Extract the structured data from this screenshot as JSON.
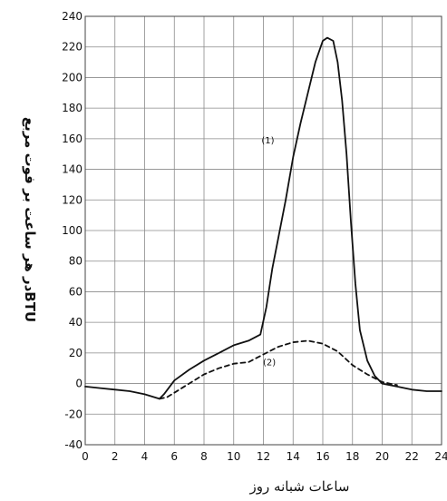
{
  "chart_data": {
    "type": "line",
    "title": "",
    "xlabel": "ساعات شبانه روز",
    "ylabel": "BTUدر هر ساعت بر فوت مربع",
    "xlim": [
      0,
      24
    ],
    "ylim": [
      -40,
      240
    ],
    "x_ticks": [
      0,
      2,
      4,
      6,
      8,
      10,
      12,
      14,
      16,
      18,
      20,
      22,
      24
    ],
    "y_ticks": [
      -40,
      -20,
      0,
      20,
      40,
      60,
      80,
      100,
      120,
      140,
      160,
      180,
      200,
      220,
      240
    ],
    "grid": true,
    "series": [
      {
        "name": "(1)",
        "style": "solid",
        "color": "#111111",
        "x": [
          0,
          1,
          2,
          3,
          4,
          5,
          5.3,
          6,
          7,
          8,
          9,
          10,
          11,
          11.8,
          12.2,
          12.6,
          13,
          13.5,
          14,
          14.5,
          15,
          15.5,
          16,
          16.3,
          16.7,
          17,
          17.3,
          17.6,
          17.9,
          18.2,
          18.5,
          19,
          19.5,
          20,
          20.5,
          21,
          22,
          23,
          24
        ],
        "y": [
          -2,
          -3,
          -4,
          -5,
          -7,
          -10,
          -7,
          2,
          9,
          15,
          20,
          25,
          28,
          32,
          50,
          75,
          95,
          120,
          148,
          170,
          190,
          210,
          224,
          226,
          224,
          210,
          185,
          150,
          105,
          65,
          35,
          15,
          5,
          0,
          -1,
          -2,
          -4,
          -5,
          -5
        ]
      },
      {
        "name": "(2)",
        "style": "dashed",
        "color": "#111111",
        "x": [
          5,
          5.5,
          6,
          7,
          8,
          9,
          10,
          11,
          12,
          13,
          14,
          15,
          16,
          17,
          18,
          19,
          20,
          20.5,
          21
        ],
        "y": [
          -10,
          -9,
          -6,
          0,
          6,
          10,
          13,
          14,
          19,
          24,
          27,
          28,
          26,
          21,
          12,
          6,
          1,
          0,
          -1
        ]
      }
    ],
    "annotations": [
      {
        "text": "(1)",
        "x": 12.3,
        "y": 157
      },
      {
        "text": "(2)",
        "x": 12.4,
        "y": 12
      }
    ]
  }
}
